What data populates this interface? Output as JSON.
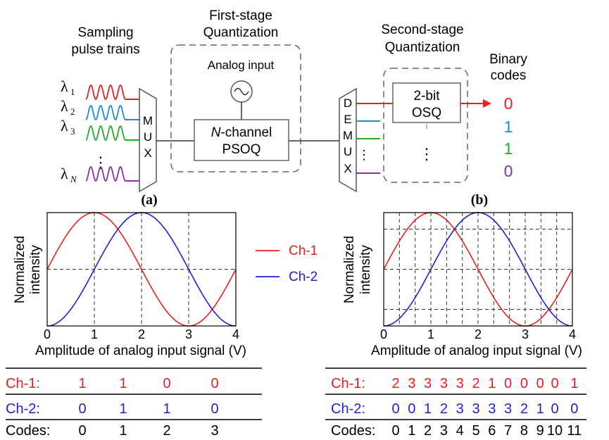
{
  "top": {
    "sampling_title": [
      "Sampling",
      "pulse trains"
    ],
    "wavelengths": [
      {
        "sym": "λ",
        "sub": "1",
        "color": "#e8201f"
      },
      {
        "sym": "λ",
        "sub": "2",
        "color": "#1f8ad6"
      },
      {
        "sym": "λ",
        "sub": "3",
        "color": "#1fae2a"
      },
      {
        "sym": "λ",
        "sub": "N",
        "color": "#8b2fa8"
      }
    ],
    "dots": "⋮",
    "mux_letters": [
      "M",
      "U",
      "X"
    ],
    "first_stage_title": [
      "First-stage",
      "Quantization"
    ],
    "analog_input": "Analog input",
    "psoq_lines": [
      "N-channel",
      "PSOQ"
    ],
    "second_stage_title": [
      "Second-stage",
      "Quantization"
    ],
    "demux_letters": [
      "D",
      "E",
      "M",
      "U",
      "X"
    ],
    "demux_dots": "⋮",
    "osq_lines": [
      "2-bit",
      "OSQ"
    ],
    "osq_dots": "⋮",
    "binary_title": [
      "Binary",
      "codes"
    ],
    "binary_codes": [
      {
        "text": "0",
        "color": "#e8201f"
      },
      {
        "text": "1",
        "color": "#1f8ad6"
      },
      {
        "text": "1",
        "color": "#1fae2a"
      },
      {
        "text": "0",
        "color": "#8b2fa8"
      }
    ]
  },
  "panel_a": {
    "label": "(a)",
    "ylabel": [
      "Normalized",
      "intensity"
    ],
    "xlabel": "Amplitude of analog input signal (V)",
    "legend": [
      {
        "name": "Ch-1",
        "color": "#e8201f"
      },
      {
        "name": "Ch-2",
        "color": "#1f1fd6"
      }
    ],
    "table": {
      "rows": [
        {
          "label": "Ch-1:",
          "color": "#e8201f",
          "values": [
            "1",
            "1",
            "0",
            "0"
          ]
        },
        {
          "label": "Ch-2:",
          "color": "#1f1fd6",
          "values": [
            "0",
            "1",
            "1",
            "0"
          ]
        },
        {
          "label": "Codes:",
          "color": "#000000",
          "values": [
            "0",
            "1",
            "2",
            "3"
          ]
        }
      ]
    }
  },
  "panel_b": {
    "label": "(b)",
    "ylabel": [
      "Normalized",
      "intensity"
    ],
    "xlabel": "Amplitude of analog input signal (V)",
    "table": {
      "rows": [
        {
          "label": "Ch-1:",
          "color": "#e8201f",
          "values": [
            "2",
            "3",
            "3",
            "3",
            "3",
            "2",
            "1",
            "0",
            "0",
            "0",
            "0",
            "1"
          ]
        },
        {
          "label": "Ch-2:",
          "color": "#1f1fd6",
          "values": [
            "0",
            "0",
            "1",
            "2",
            "3",
            "3",
            "3",
            "3",
            "2",
            "1",
            "0",
            "0"
          ]
        },
        {
          "label": "Codes:",
          "color": "#000000",
          "values": [
            "0",
            "1",
            "2",
            "3",
            "4",
            "5",
            "6",
            "7",
            "8",
            "9",
            "10",
            "11"
          ]
        }
      ]
    }
  },
  "chart_data": [
    {
      "type": "line",
      "title": "(a)",
      "xlabel": "Amplitude of analog input signal (V)",
      "ylabel": "Normalized intensity",
      "xlim": [
        0,
        4
      ],
      "xticks": [
        "0",
        "1",
        "2",
        "3",
        "4"
      ],
      "series": [
        {
          "name": "Ch-1",
          "color": "#e8201f",
          "x": [
            0,
            0.5,
            1,
            1.5,
            2,
            2.5,
            3,
            3.5,
            4
          ],
          "y": [
            0.5,
            0.854,
            1,
            0.854,
            0.5,
            0.146,
            0,
            0.146,
            0.5
          ]
        },
        {
          "name": "Ch-2",
          "color": "#1f1fd6",
          "x": [
            0,
            0.5,
            1,
            1.5,
            2,
            2.5,
            3,
            3.5,
            4
          ],
          "y": [
            0,
            0.146,
            0.5,
            0.854,
            1,
            0.854,
            0.5,
            0.146,
            0
          ]
        }
      ],
      "legend": "right",
      "grid": "dashed at x=1,2,3 and y=0.5"
    },
    {
      "type": "line",
      "title": "(b)",
      "xlabel": "Amplitude of analog input signal (V)",
      "ylabel": "Normalized intensity",
      "xlim": [
        0,
        4
      ],
      "xticks": [
        "0",
        "1",
        "2",
        "3",
        "4"
      ],
      "series": [
        {
          "color": "#e8201f",
          "x": [
            0,
            0.5,
            1,
            1.5,
            2,
            2.5,
            3,
            3.5,
            4
          ],
          "y": [
            0.5,
            0.854,
            1,
            0.854,
            0.5,
            0.146,
            0,
            0.146,
            0.5
          ]
        },
        {
          "color": "#1f1fd6",
          "x": [
            0,
            0.5,
            1,
            1.5,
            2,
            2.5,
            3,
            3.5,
            4
          ],
          "y": [
            0,
            0.146,
            0.5,
            0.854,
            1,
            0.854,
            0.5,
            0.146,
            0
          ]
        }
      ],
      "grid": "dashed, 12 x-intervals and 4 y-levels"
    }
  ]
}
